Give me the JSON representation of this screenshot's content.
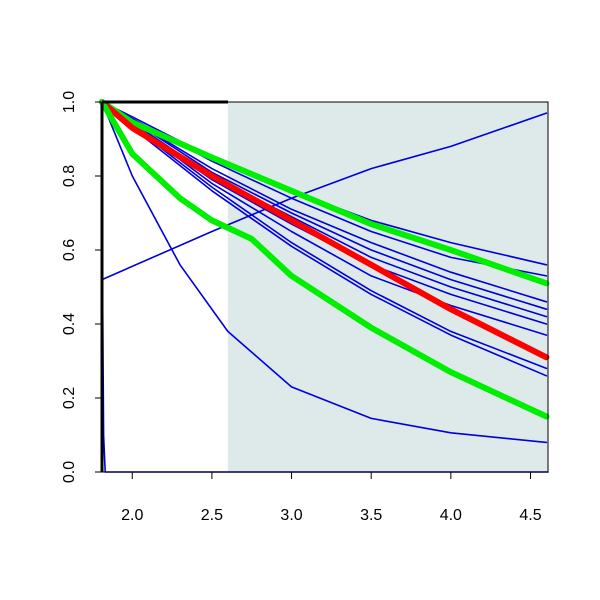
{
  "chart_data": {
    "type": "line",
    "title": "",
    "xlabel": "",
    "ylabel": "",
    "xlim": [
      1.81,
      4.61
    ],
    "ylim": [
      0.0,
      1.0
    ],
    "grid": false,
    "legend": "none",
    "shaded_region": {
      "x": [
        2.6,
        4.61
      ],
      "color": "#deeaea"
    },
    "x_ticks": [
      {
        "value": 2.0,
        "label": "2.0"
      },
      {
        "value": 2.5,
        "label": "2.5"
      },
      {
        "value": 3.0,
        "label": "3.0"
      },
      {
        "value": 3.5,
        "label": "3.5"
      },
      {
        "value": 4.0,
        "label": "4.0"
      },
      {
        "value": 4.5,
        "label": "4.5"
      }
    ],
    "y_ticks": [
      {
        "value": 0.0,
        "label": "0.0"
      },
      {
        "value": 0.2,
        "label": "0.2"
      },
      {
        "value": 0.4,
        "label": "0.4"
      },
      {
        "value": 0.6,
        "label": "0.6"
      },
      {
        "value": 0.8,
        "label": "0.8"
      },
      {
        "value": 1.0,
        "label": "1.0"
      }
    ],
    "series": [
      {
        "color": "#0000dd",
        "weight": "thin",
        "points": [
          [
            1.81,
            1.0
          ],
          [
            2.0,
            0.8
          ],
          [
            2.3,
            0.56
          ],
          [
            2.6,
            0.38
          ],
          [
            3.0,
            0.23
          ],
          [
            3.5,
            0.145
          ],
          [
            4.0,
            0.106
          ],
          [
            4.6,
            0.08
          ]
        ]
      },
      {
        "color": "#0000dd",
        "weight": "thin",
        "points": [
          [
            1.81,
            1.0
          ],
          [
            2.0,
            0.96
          ],
          [
            2.5,
            0.85
          ],
          [
            3.0,
            0.76
          ],
          [
            3.5,
            0.68
          ],
          [
            4.0,
            0.62
          ],
          [
            4.6,
            0.56
          ]
        ]
      },
      {
        "color": "#0000dd",
        "weight": "thin",
        "points": [
          [
            1.81,
            1.0
          ],
          [
            2.0,
            0.955
          ],
          [
            2.5,
            0.84
          ],
          [
            3.0,
            0.74
          ],
          [
            3.5,
            0.65
          ],
          [
            4.0,
            0.58
          ],
          [
            4.6,
            0.53
          ]
        ]
      },
      {
        "color": "#0000dd",
        "weight": "thin",
        "points": [
          [
            1.81,
            1.0
          ],
          [
            2.0,
            0.95
          ],
          [
            2.5,
            0.82
          ],
          [
            3.0,
            0.71
          ],
          [
            3.5,
            0.62
          ],
          [
            4.0,
            0.54
          ],
          [
            4.6,
            0.46
          ]
        ]
      },
      {
        "color": "#0000dd",
        "weight": "thin",
        "points": [
          [
            1.81,
            1.0
          ],
          [
            2.0,
            0.95
          ],
          [
            2.5,
            0.81
          ],
          [
            3.0,
            0.7
          ],
          [
            3.5,
            0.6
          ],
          [
            4.0,
            0.52
          ],
          [
            4.6,
            0.44
          ]
        ]
      },
      {
        "color": "#0000dd",
        "weight": "thin",
        "points": [
          [
            1.81,
            1.0
          ],
          [
            2.0,
            0.945
          ],
          [
            2.5,
            0.8
          ],
          [
            3.0,
            0.69
          ],
          [
            3.5,
            0.58
          ],
          [
            4.0,
            0.5
          ],
          [
            4.6,
            0.42
          ]
        ]
      },
      {
        "color": "#0000dd",
        "weight": "thin",
        "points": [
          [
            1.81,
            1.0
          ],
          [
            2.0,
            0.94
          ],
          [
            2.5,
            0.79
          ],
          [
            3.0,
            0.67
          ],
          [
            3.5,
            0.56
          ],
          [
            4.0,
            0.48
          ],
          [
            4.6,
            0.4
          ]
        ]
      },
      {
        "color": "#0000dd",
        "weight": "thin",
        "points": [
          [
            1.81,
            1.0
          ],
          [
            2.0,
            0.94
          ],
          [
            2.5,
            0.78
          ],
          [
            3.0,
            0.65
          ],
          [
            3.5,
            0.53
          ],
          [
            4.0,
            0.45
          ],
          [
            4.6,
            0.37
          ]
        ]
      },
      {
        "color": "#0000dd",
        "weight": "thin",
        "points": [
          [
            1.81,
            1.0
          ],
          [
            2.0,
            0.935
          ],
          [
            2.5,
            0.77
          ],
          [
            3.0,
            0.62
          ],
          [
            3.5,
            0.49
          ],
          [
            4.0,
            0.38
          ],
          [
            4.6,
            0.28
          ]
        ]
      },
      {
        "color": "#0000dd",
        "weight": "thin",
        "points": [
          [
            1.81,
            1.0
          ],
          [
            2.0,
            0.93
          ],
          [
            2.5,
            0.76
          ],
          [
            3.0,
            0.61
          ],
          [
            3.5,
            0.48
          ],
          [
            4.0,
            0.37
          ],
          [
            4.6,
            0.26
          ]
        ]
      },
      {
        "color": "#0000dd",
        "weight": "thin",
        "points": [
          [
            1.81,
            0.52
          ],
          [
            2.5,
            0.65
          ],
          [
            3.0,
            0.74
          ],
          [
            3.5,
            0.82
          ],
          [
            4.0,
            0.88
          ],
          [
            4.6,
            0.97
          ]
        ]
      },
      {
        "color": "#0000dd",
        "weight": "thin",
        "points": [
          [
            1.81,
            0.7
          ],
          [
            1.815,
            0.4
          ],
          [
            1.82,
            0.1
          ],
          [
            1.83,
            0.0
          ],
          [
            4.61,
            0.0
          ]
        ]
      },
      {
        "color": "#00ee00",
        "weight": "thick",
        "points": [
          [
            1.81,
            1.0
          ],
          [
            2.0,
            0.945
          ],
          [
            2.5,
            0.85
          ],
          [
            3.0,
            0.76
          ],
          [
            3.5,
            0.67
          ],
          [
            4.0,
            0.6
          ],
          [
            4.6,
            0.51
          ]
        ]
      },
      {
        "color": "#ff0000",
        "weight": "thick",
        "points": [
          [
            1.81,
            1.0
          ],
          [
            2.0,
            0.93
          ],
          [
            2.5,
            0.8
          ],
          [
            3.0,
            0.68
          ],
          [
            3.5,
            0.56
          ],
          [
            4.0,
            0.44
          ],
          [
            4.6,
            0.31
          ]
        ]
      },
      {
        "color": "#00ee00",
        "weight": "thick",
        "points": [
          [
            1.81,
            1.0
          ],
          [
            2.0,
            0.86
          ],
          [
            2.3,
            0.74
          ],
          [
            2.5,
            0.68
          ],
          [
            2.75,
            0.63
          ],
          [
            3.0,
            0.53
          ],
          [
            3.5,
            0.39
          ],
          [
            4.0,
            0.27
          ],
          [
            4.6,
            0.15
          ]
        ]
      }
    ]
  }
}
